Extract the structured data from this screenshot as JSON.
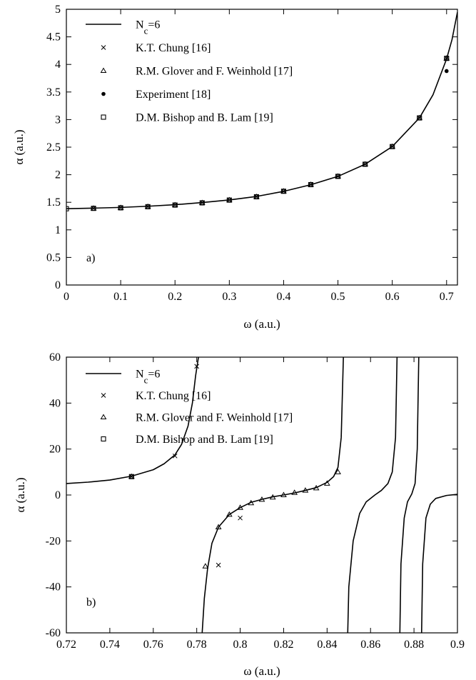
{
  "chart_data": [
    {
      "type": "line",
      "panel_label": "a)",
      "xlabel": "ω (a.u.)",
      "ylabel": "α (a.u.)",
      "xlim": [
        0,
        0.72
      ],
      "ylim": [
        0,
        5
      ],
      "xticks": [
        0,
        0.1,
        0.2,
        0.3,
        0.4,
        0.5,
        0.6,
        0.7
      ],
      "xtick_labels": [
        "0",
        "0.1",
        "0.2",
        "0.3",
        "0.4",
        "0.5",
        "0.6",
        "0.7"
      ],
      "yticks": [
        0,
        0.5,
        1,
        1.5,
        2,
        2.5,
        3,
        3.5,
        4,
        4.5,
        5
      ],
      "ytick_labels": [
        "0",
        "0.5",
        "1",
        "1.5",
        "2",
        "2.5",
        "3",
        "3.5",
        "4",
        "4.5",
        "5"
      ],
      "grid": false,
      "legend_position": "top-left",
      "series": [
        {
          "name": "N_c=6",
          "marker": "line",
          "x": [
            0,
            0.05,
            0.1,
            0.15,
            0.2,
            0.25,
            0.3,
            0.35,
            0.4,
            0.45,
            0.5,
            0.55,
            0.6,
            0.65,
            0.675,
            0.7,
            0.71,
            0.72
          ],
          "y": [
            1.383,
            1.394,
            1.407,
            1.428,
            1.456,
            1.495,
            1.542,
            1.606,
            1.698,
            1.818,
            1.97,
            2.19,
            2.51,
            3.03,
            3.45,
            4.1,
            4.45,
            4.95
          ]
        },
        {
          "name": "K.T. Chung [16]",
          "marker": "x",
          "x": [
            0.05,
            0.1,
            0.15,
            0.2,
            0.25,
            0.3,
            0.35,
            0.4,
            0.45,
            0.5,
            0.55,
            0.6,
            0.65,
            0.7
          ],
          "y": [
            1.39,
            1.4,
            1.42,
            1.45,
            1.49,
            1.54,
            1.6,
            1.7,
            1.82,
            1.97,
            2.19,
            2.51,
            3.03,
            4.11
          ]
        },
        {
          "name": "R.M. Glover and F. Weinhold [17]",
          "marker": "triangle",
          "x": [
            0.05,
            0.1,
            0.15,
            0.2,
            0.25,
            0.3,
            0.35,
            0.4,
            0.45,
            0.5,
            0.55,
            0.6,
            0.65,
            0.7
          ],
          "y": [
            1.39,
            1.4,
            1.42,
            1.45,
            1.49,
            1.54,
            1.6,
            1.7,
            1.82,
            1.97,
            2.19,
            2.51,
            3.03,
            4.11
          ]
        },
        {
          "name": "Experiment [18]",
          "marker": "dot",
          "x": [
            0.7
          ],
          "y": [
            3.88
          ]
        },
        {
          "name": "D.M. Bishop and B. Lam [19]",
          "marker": "square",
          "x": [
            0,
            0.05,
            0.1,
            0.15,
            0.2,
            0.25,
            0.3,
            0.35,
            0.4,
            0.45,
            0.5,
            0.55,
            0.6,
            0.65,
            0.7
          ],
          "y": [
            1.383,
            1.39,
            1.4,
            1.42,
            1.45,
            1.49,
            1.54,
            1.6,
            1.7,
            1.82,
            1.97,
            2.19,
            2.51,
            3.03,
            4.11
          ]
        }
      ]
    },
    {
      "type": "line",
      "panel_label": "b)",
      "xlabel": "ω (a.u.)",
      "ylabel": "α (a.u.)",
      "xlim": [
        0.72,
        0.9
      ],
      "ylim": [
        -60,
        60
      ],
      "xticks": [
        0.72,
        0.74,
        0.76,
        0.78,
        0.8,
        0.82,
        0.84,
        0.86,
        0.88,
        0.9
      ],
      "xtick_labels": [
        "0.72",
        "0.74",
        "0.76",
        "0.78",
        "0.8",
        "0.82",
        "0.84",
        "0.86",
        "0.88",
        "0.9"
      ],
      "yticks": [
        -60,
        -40,
        -20,
        0,
        20,
        40,
        60
      ],
      "ytick_labels": [
        "-60",
        "-40",
        "-20",
        "0",
        "20",
        "40",
        "60"
      ],
      "grid": false,
      "legend_position": "top-left",
      "series": [
        {
          "name": "N_c=6",
          "marker": "line",
          "segments": [
            {
              "x": [
                0.72,
                0.73,
                0.74,
                0.75,
                0.76,
                0.765,
                0.77,
                0.773,
                0.776,
                0.778,
                0.7795,
                0.7808
              ],
              "y": [
                5.0,
                5.6,
                6.5,
                8.2,
                11.0,
                13.6,
                17.5,
                22.0,
                30.0,
                40.0,
                52.0,
                60.0
              ]
            },
            {
              "x": [
                0.7825,
                0.7835,
                0.785,
                0.787,
                0.79,
                0.795,
                0.8,
                0.805,
                0.81,
                0.815,
                0.82,
                0.825,
                0.83,
                0.835,
                0.84,
                0.843,
                0.845,
                0.8465,
                0.8475
              ],
              "y": [
                -60,
                -45,
                -32,
                -21,
                -14,
                -8.5,
                -5.5,
                -3.2,
                -1.9,
                -0.8,
                0.0,
                0.9,
                2.0,
                3.2,
                5.5,
                8.0,
                12.0,
                25.0,
                60.0
              ]
            },
            {
              "x": [
                0.8495,
                0.85,
                0.852,
                0.855,
                0.858,
                0.862,
                0.865,
                0.868,
                0.87,
                0.8715,
                0.8722
              ],
              "y": [
                -60,
                -40,
                -20,
                -8,
                -3,
                0.0,
                2.0,
                5.0,
                10.0,
                25.0,
                60.0
              ]
            },
            {
              "x": [
                0.8735,
                0.874,
                0.8755,
                0.877,
                0.879,
                0.8805,
                0.8815,
                0.8822
              ],
              "y": [
                -60,
                -30,
                -10,
                -3,
                0.5,
                5.0,
                20.0,
                60.0
              ]
            },
            {
              "x": [
                0.8835,
                0.884,
                0.8855,
                0.8875,
                0.89,
                0.895,
                0.9
              ],
              "y": [
                -60,
                -30,
                -10,
                -4,
                -1.5,
                -0.2,
                0.3
              ]
            }
          ]
        },
        {
          "name": "K.T. Chung [16]",
          "marker": "x",
          "x": [
            0.75,
            0.77,
            0.78,
            0.79,
            0.8
          ],
          "y": [
            8.0,
            17.0,
            56.0,
            -30.5,
            -10.0
          ]
        },
        {
          "name": "R.M. Glover and F. Weinhold [17]",
          "marker": "triangle",
          "x": [
            0.75,
            0.784,
            0.79,
            0.795,
            0.8,
            0.805,
            0.81,
            0.815,
            0.82,
            0.825,
            0.83,
            0.835,
            0.84,
            0.845
          ],
          "y": [
            8.0,
            -31.0,
            -14.0,
            -8.5,
            -5.5,
            -3.5,
            -2.0,
            -1.0,
            0.0,
            1.0,
            2.0,
            3.0,
            5.0,
            10.0
          ]
        },
        {
          "name": "D.M. Bishop and B. Lam [19]",
          "marker": "square",
          "x": [
            0.75
          ],
          "y": [
            8.0
          ]
        }
      ]
    }
  ]
}
